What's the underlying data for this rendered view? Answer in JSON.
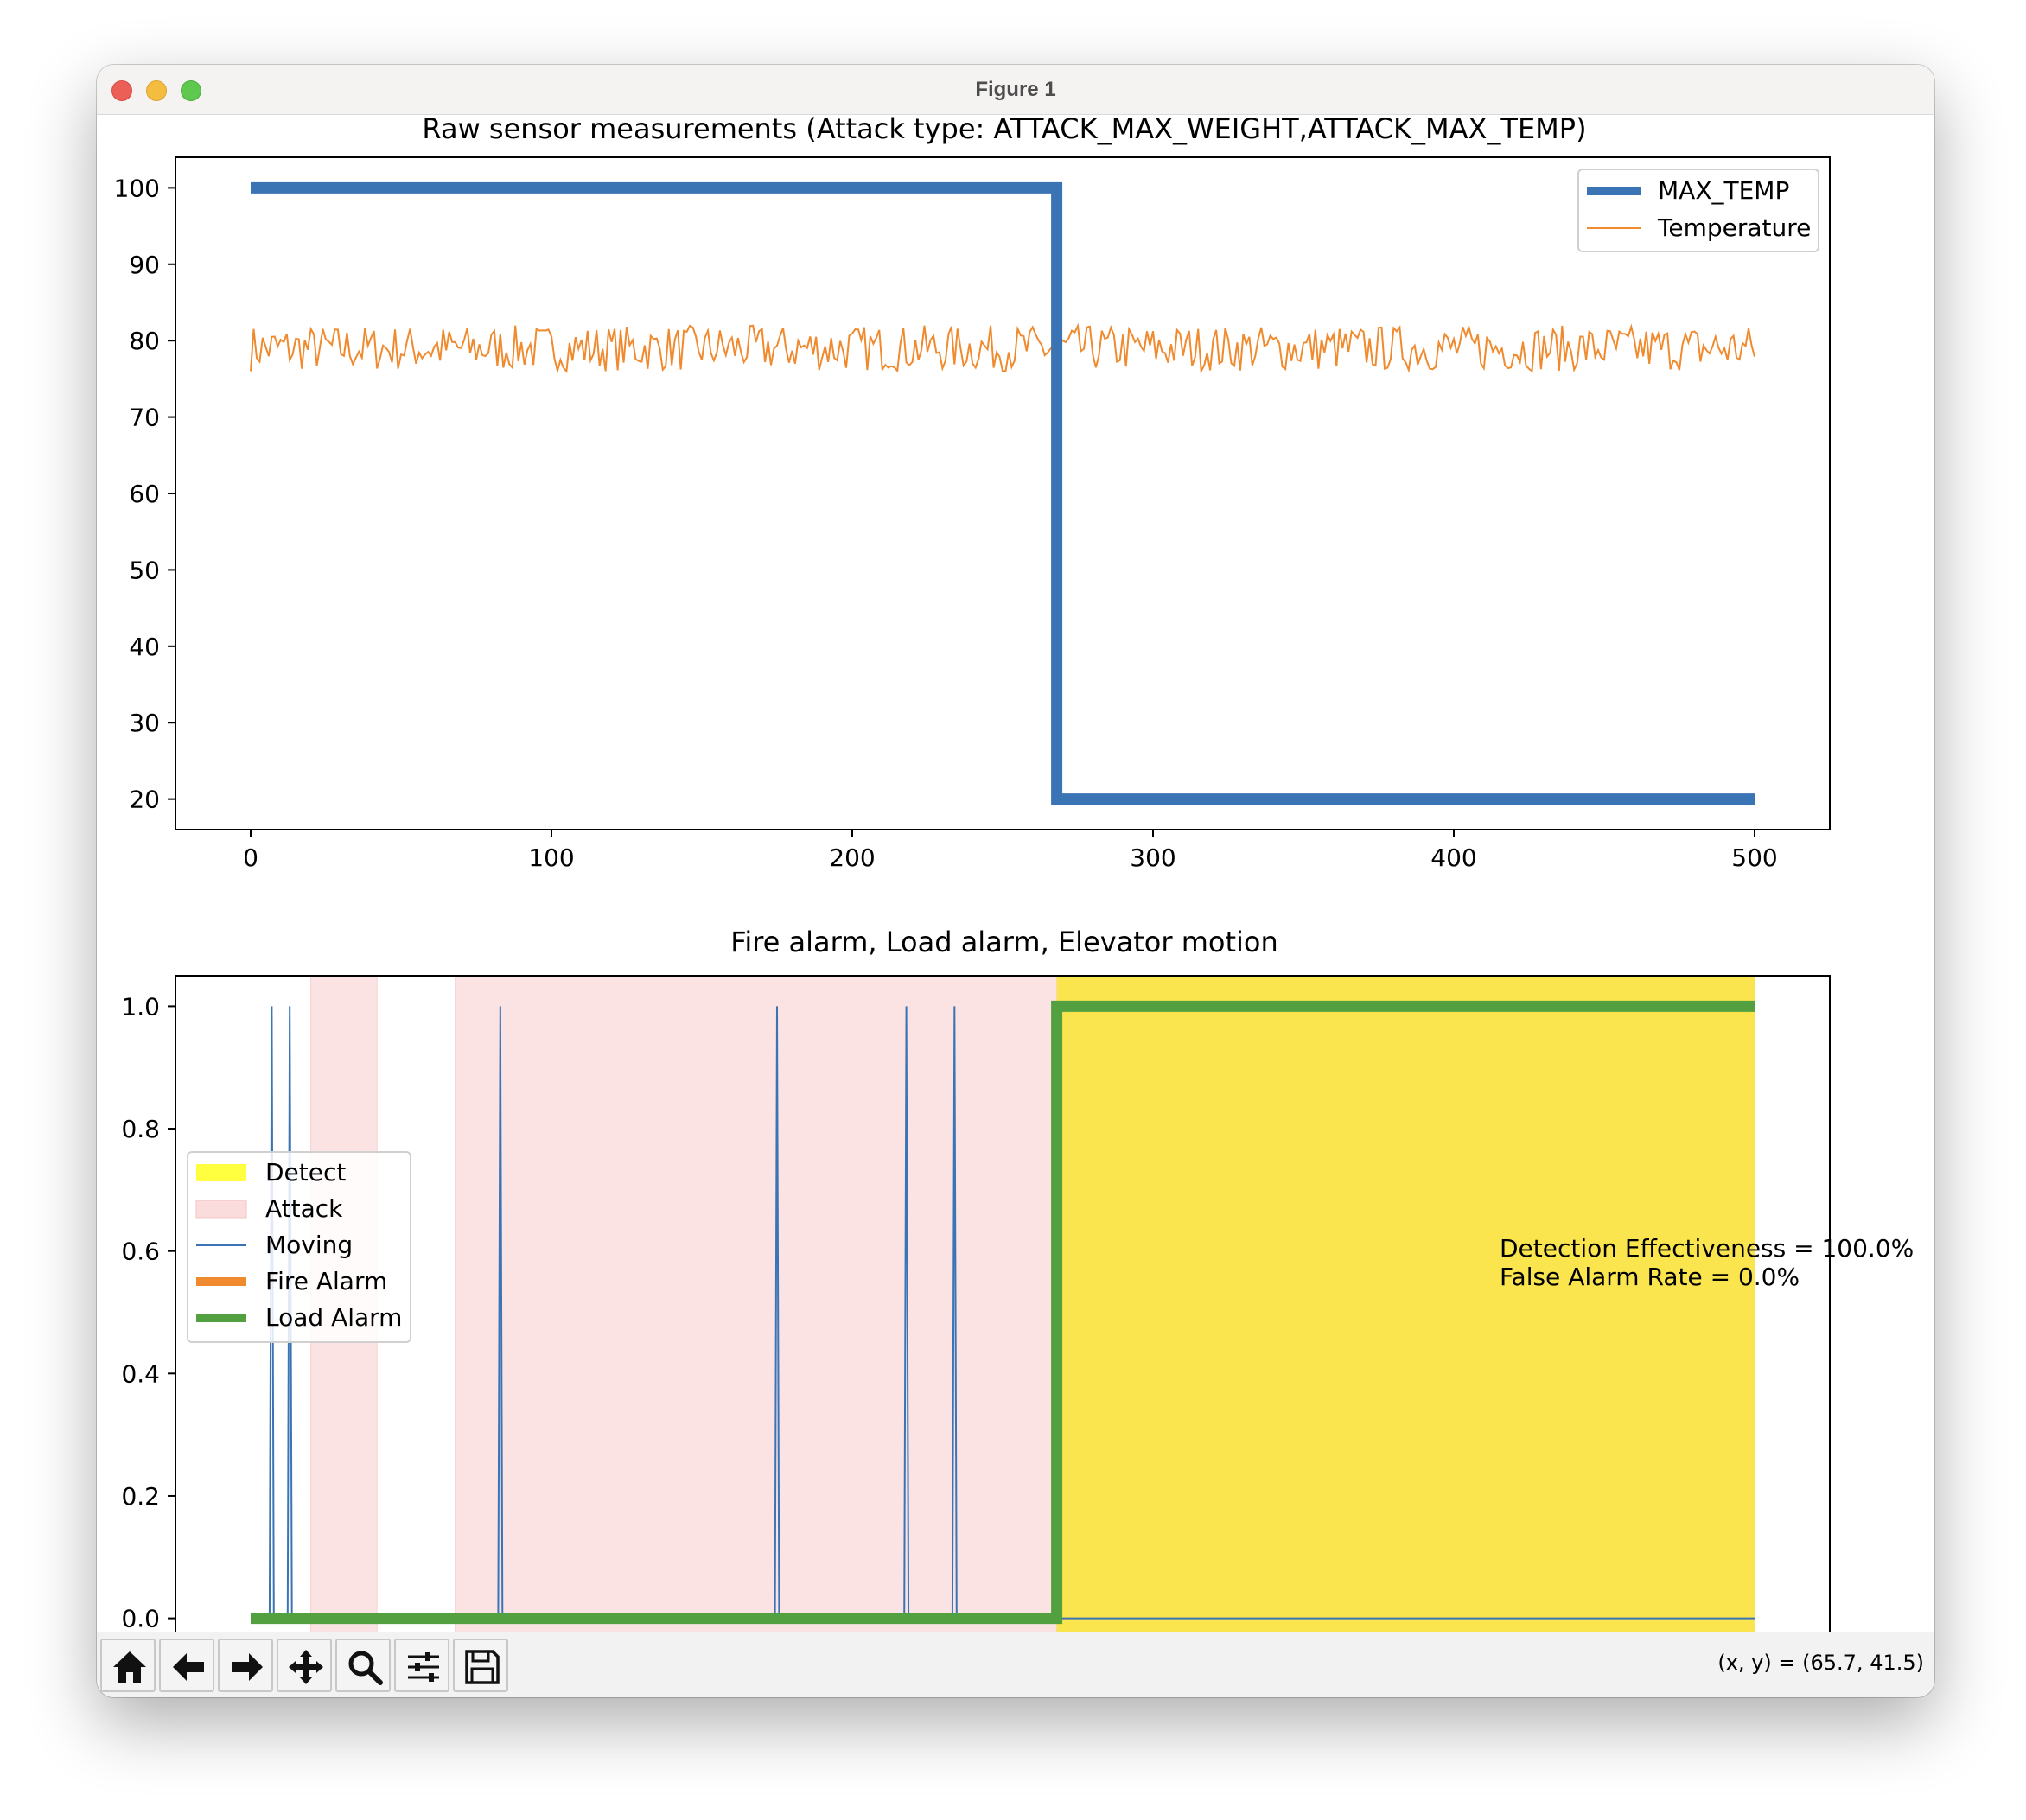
{
  "window": {
    "title": "Figure 1"
  },
  "status": {
    "coords": "(x, y) = (65.7, 41.5)"
  },
  "toolbar": {
    "tools": [
      {
        "name": "home-tool",
        "icon": "home-icon"
      },
      {
        "name": "back-tool",
        "icon": "arrow-left-icon"
      },
      {
        "name": "forward-tool",
        "icon": "arrow-right-icon"
      },
      {
        "name": "pan-tool",
        "icon": "move-icon"
      },
      {
        "name": "zoom-tool",
        "icon": "magnifier-icon"
      },
      {
        "name": "configure-tool",
        "icon": "sliders-icon"
      },
      {
        "name": "save-tool",
        "icon": "floppy-icon"
      }
    ]
  },
  "chart_data": [
    {
      "type": "line",
      "title": "Raw sensor measurements (Attack type: ATTACK_MAX_WEIGHT,ATTACK_MAX_TEMP)",
      "xlim": [
        -25,
        525
      ],
      "ylim": [
        16.0,
        104.0
      ],
      "xticks": [
        0,
        100,
        200,
        300,
        400,
        500
      ],
      "yticks": [
        20,
        30,
        40,
        50,
        60,
        70,
        80,
        90,
        100
      ],
      "legend": "top-right",
      "series": [
        {
          "name": "MAX_TEMP",
          "color": "#3a74b5",
          "style": "thick",
          "points": [
            [
              0,
              100
            ],
            [
              268,
              100
            ],
            [
              268,
              20
            ],
            [
              500,
              20
            ]
          ]
        },
        {
          "name": "Temperature",
          "color": "#f08a2e",
          "style": "thin",
          "mean": 78.5,
          "range": [
            76,
            82
          ],
          "x_range": [
            0,
            500
          ]
        }
      ]
    },
    {
      "type": "line",
      "title": "Fire alarm, Load alarm, Elevator motion",
      "xlim": [
        -25,
        525
      ],
      "ylim": [
        -0.05,
        1.05
      ],
      "xticks": [
        0,
        100,
        200,
        300,
        400,
        500
      ],
      "yticks": [
        "0.0",
        "0.2",
        "0.4",
        "0.6",
        "0.8",
        "1.0"
      ],
      "legend": "center-left",
      "regions": [
        {
          "label": "Attack",
          "color": "#fbe3e3",
          "spans": [
            [
              20,
              42
            ],
            [
              68,
              268
            ]
          ]
        },
        {
          "label": "Detect",
          "color": "#fae54e",
          "spans": [
            [
              268,
              500
            ]
          ]
        }
      ],
      "series": [
        {
          "name": "Detect",
          "kind": "patch",
          "color": "#ffff40"
        },
        {
          "name": "Attack",
          "kind": "patch",
          "color": "#fbdcdc"
        },
        {
          "name": "Moving",
          "color": "#3a74b5",
          "style": "thin",
          "spikes": [
            7,
            13,
            83,
            175,
            218,
            234
          ],
          "x_range": [
            0,
            500
          ]
        },
        {
          "name": "Fire Alarm",
          "color": "#f08a2e",
          "style": "thick"
        },
        {
          "name": "Load Alarm",
          "color": "#52a040",
          "style": "thick",
          "points": [
            [
              0,
              0
            ],
            [
              268,
              0
            ],
            [
              268,
              1
            ],
            [
              500,
              1
            ]
          ]
        }
      ],
      "annotation": "Detection Effectiveness = 100.0%\nFalse Alarm Rate = 0.0%",
      "annotation_lines": [
        "Detection Effectiveness = 100.0%",
        "False Alarm Rate = 0.0%"
      ]
    }
  ]
}
